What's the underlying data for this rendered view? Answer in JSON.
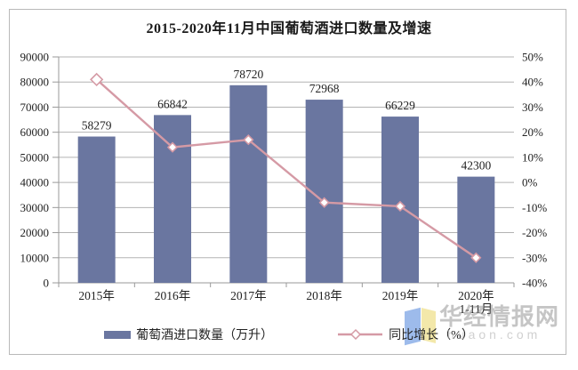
{
  "title": "2015-2020年11月中国葡萄酒进口数量及增速",
  "chart_data": {
    "type": "bar",
    "subtype": "bar-with-line-secondary-axis",
    "title": "2015-2020年11月中国葡萄酒进口数量及增速",
    "categories": [
      "2015年",
      "2016年",
      "2017年",
      "2018年",
      "2019年",
      "2020年1-11月"
    ],
    "x_tick_lines": [
      [
        "2015年"
      ],
      [
        "2016年"
      ],
      [
        "2017年"
      ],
      [
        "2018年"
      ],
      [
        "2019年"
      ],
      [
        "2020年",
        "1-11月"
      ]
    ],
    "series": [
      {
        "name": "葡萄酒进口数量（万升）",
        "type": "bar",
        "axis": "left",
        "values": [
          58279,
          66842,
          78720,
          72968,
          66229,
          42300
        ],
        "data_labels": [
          "58279",
          "66842",
          "78720",
          "72968",
          "66229",
          "42300"
        ],
        "color": "#6a76a0"
      },
      {
        "name": "同比增长（%）",
        "type": "line",
        "axis": "right",
        "values": [
          41,
          14,
          17,
          -8,
          -9.5,
          -30
        ],
        "approx": true,
        "color": "#d59aa5",
        "marker": "open-diamond"
      }
    ],
    "left_axis": {
      "min": 0,
      "max": 90000,
      "step": 10000,
      "tick_labels": [
        "0",
        "10000",
        "20000",
        "30000",
        "40000",
        "50000",
        "60000",
        "70000",
        "80000",
        "90000"
      ]
    },
    "right_axis": {
      "min": -40,
      "max": 50,
      "step": 10,
      "tick_labels": [
        "-40%",
        "-30%",
        "-20%",
        "-10%",
        "0%",
        "10%",
        "20%",
        "30%",
        "40%",
        "50%"
      ]
    },
    "grid": true,
    "legend_position": "bottom"
  },
  "legend": {
    "bar_label": "葡萄酒进口数量（万升）",
    "line_label": "同比增长（%）"
  },
  "watermark": {
    "text": "华经情报网",
    "site": "huaon.com",
    "logo_blue": "#8cb0e8",
    "logo_yellow": "#f1e49c"
  },
  "colors": {
    "bar": "#6a76a0",
    "line": "#d59aa5",
    "grid": "#b3b3b3",
    "axis": "#999999",
    "text": "#222222"
  }
}
